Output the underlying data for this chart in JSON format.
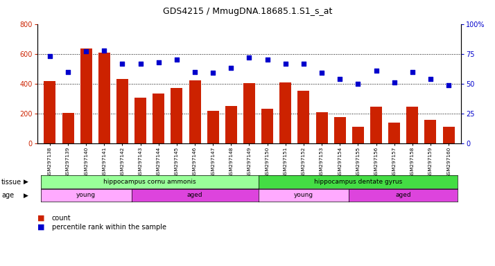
{
  "title": "GDS4215 / MmugDNA.18685.1.S1_s_at",
  "samples": [
    "GSM297138",
    "GSM297139",
    "GSM297140",
    "GSM297141",
    "GSM297142",
    "GSM297143",
    "GSM297144",
    "GSM297145",
    "GSM297146",
    "GSM297147",
    "GSM297148",
    "GSM297149",
    "GSM297150",
    "GSM297151",
    "GSM297152",
    "GSM297153",
    "GSM297154",
    "GSM297155",
    "GSM297156",
    "GSM297157",
    "GSM297158",
    "GSM297159",
    "GSM297160"
  ],
  "counts": [
    420,
    207,
    635,
    607,
    432,
    308,
    335,
    370,
    425,
    220,
    252,
    405,
    235,
    410,
    355,
    210,
    178,
    112,
    247,
    142,
    247,
    160,
    112
  ],
  "percentiles": [
    73,
    60,
    77,
    78,
    67,
    67,
    68,
    70,
    60,
    59,
    63,
    72,
    70,
    67,
    67,
    59,
    54,
    50,
    61,
    51,
    60,
    54,
    49
  ],
  "bar_color": "#cc2200",
  "dot_color": "#0000cc",
  "ylim_left": [
    0,
    800
  ],
  "ylim_right": [
    0,
    100
  ],
  "yticks_left": [
    0,
    200,
    400,
    600,
    800
  ],
  "yticks_right": [
    0,
    25,
    50,
    75,
    100
  ],
  "grid_lines": [
    200,
    400,
    600
  ],
  "tissue_groups": [
    {
      "label": "hippocampus cornu ammonis",
      "start": 0,
      "end": 11,
      "color": "#99ff99"
    },
    {
      "label": "hippocampus dentate gyrus",
      "start": 12,
      "end": 22,
      "color": "#44dd44"
    }
  ],
  "age_groups": [
    {
      "label": "young",
      "start": 0,
      "end": 4,
      "color": "#ffaaff"
    },
    {
      "label": "aged",
      "start": 5,
      "end": 11,
      "color": "#dd44dd"
    },
    {
      "label": "young",
      "start": 12,
      "end": 16,
      "color": "#ffaaff"
    },
    {
      "label": "aged",
      "start": 17,
      "end": 22,
      "color": "#dd44dd"
    }
  ],
  "tissue_label": "tissue",
  "age_label": "age",
  "legend_count_label": "count",
  "legend_pct_label": "percentile rank within the sample",
  "plot_bg_color": "#ffffff",
  "fig_bg_color": "#ffffff",
  "gap_color": "#cccccc"
}
